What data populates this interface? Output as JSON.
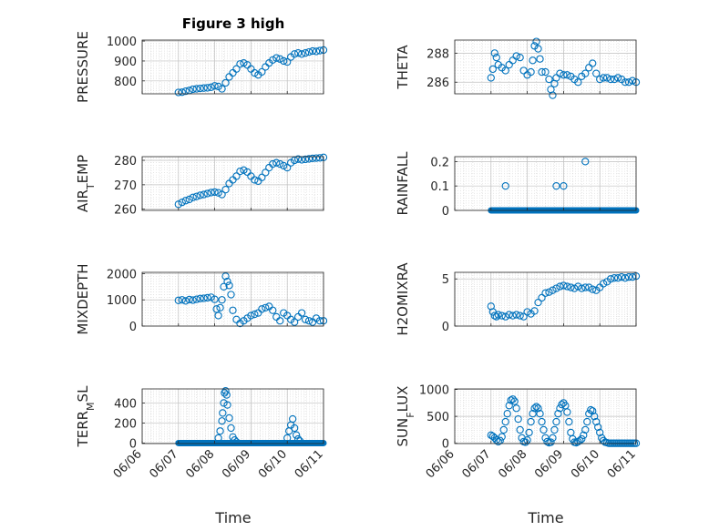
{
  "figure": {
    "title": "Figure 3 high"
  },
  "colors": {
    "marker": "#0072BD",
    "axis": "#262626",
    "grid": "#d6d6d6"
  },
  "chart_data": [
    {
      "type": "scatter",
      "ylabel": "PRESSURE",
      "ylim": [
        735,
        1005
      ],
      "yticks": [
        800,
        900,
        1000
      ],
      "x": [
        7.0,
        7.1,
        7.2,
        7.3,
        7.4,
        7.5,
        7.6,
        7.7,
        7.8,
        7.9,
        8.0,
        8.1,
        8.2,
        8.3,
        8.4,
        8.5,
        8.6,
        8.7,
        8.8,
        8.9,
        9.0,
        9.1,
        9.2,
        9.3,
        9.4,
        9.5,
        9.6,
        9.7,
        9.8,
        9.9,
        10.0,
        10.1,
        10.2,
        10.3,
        10.4,
        10.5,
        10.6,
        10.7,
        10.8,
        10.9,
        11.0
      ],
      "y": [
        742,
        743,
        748,
        752,
        758,
        760,
        762,
        764,
        765,
        768,
        775,
        772,
        760,
        790,
        820,
        840,
        860,
        885,
        890,
        880,
        860,
        840,
        830,
        845,
        870,
        890,
        905,
        915,
        910,
        900,
        895,
        920,
        935,
        940,
        935,
        940,
        945,
        950,
        948,
        952,
        955
      ]
    },
    {
      "type": "scatter",
      "ylabel": "THETA",
      "ylim": [
        285.2,
        288.9
      ],
      "yticks": [
        286,
        288
      ],
      "x": [
        7.0,
        7.05,
        7.1,
        7.15,
        7.2,
        7.3,
        7.4,
        7.5,
        7.6,
        7.7,
        7.8,
        7.9,
        8.0,
        8.1,
        8.15,
        8.2,
        8.25,
        8.3,
        8.35,
        8.4,
        8.5,
        8.6,
        8.65,
        8.7,
        8.75,
        8.8,
        8.9,
        9.0,
        9.1,
        9.2,
        9.3,
        9.4,
        9.5,
        9.6,
        9.7,
        9.8,
        9.9,
        10.0,
        10.1,
        10.2,
        10.3,
        10.4,
        10.5,
        10.6,
        10.7,
        10.8,
        10.9,
        11.0
      ],
      "y": [
        286.3,
        286.9,
        288.0,
        287.7,
        287.2,
        287.0,
        286.8,
        287.2,
        287.5,
        287.8,
        287.7,
        286.8,
        286.5,
        286.7,
        287.5,
        288.5,
        288.8,
        288.3,
        287.6,
        286.7,
        286.7,
        286.2,
        285.5,
        285.1,
        285.9,
        286.3,
        286.6,
        286.5,
        286.5,
        286.4,
        286.2,
        286.0,
        286.4,
        286.6,
        287.0,
        287.3,
        286.6,
        286.2,
        286.3,
        286.3,
        286.2,
        286.2,
        286.3,
        286.2,
        286.0,
        286.0,
        286.1,
        286.0
      ]
    },
    {
      "type": "scatter",
      "ylabel": "AIR_TEMP",
      "ylim": [
        259.5,
        281.5
      ],
      "yticks": [
        260,
        270,
        280
      ],
      "x": [
        7.0,
        7.1,
        7.2,
        7.3,
        7.4,
        7.5,
        7.6,
        7.7,
        7.8,
        7.9,
        8.0,
        8.1,
        8.2,
        8.3,
        8.4,
        8.5,
        8.6,
        8.7,
        8.8,
        8.9,
        9.0,
        9.1,
        9.2,
        9.3,
        9.4,
        9.5,
        9.6,
        9.7,
        9.8,
        9.9,
        10.0,
        10.1,
        10.2,
        10.3,
        10.4,
        10.5,
        10.6,
        10.7,
        10.8,
        10.9,
        11.0
      ],
      "y": [
        262.0,
        262.8,
        263.5,
        264.0,
        264.8,
        265.2,
        265.7,
        266.0,
        266.4,
        266.8,
        267.0,
        266.7,
        266.0,
        268.0,
        270.5,
        272.0,
        273.5,
        275.5,
        276.0,
        275.2,
        273.5,
        272.0,
        271.5,
        273.0,
        275.0,
        277.0,
        278.5,
        279.0,
        278.5,
        277.8,
        277.0,
        279.0,
        280.0,
        280.5,
        280.2,
        280.4,
        280.6,
        280.8,
        280.9,
        281.0,
        281.2
      ]
    },
    {
      "type": "scatter",
      "ylabel": "RAINFALL",
      "ylim": [
        0,
        0.22
      ],
      "yticks": [
        0,
        0.1,
        0.2
      ],
      "x": [
        7.4,
        8.8,
        9.0,
        9.6
      ],
      "y": [
        0.1,
        0.1,
        0.1,
        0.2
      ],
      "baseline": {
        "y": 0,
        "from": 7.0,
        "to": 11.0
      }
    },
    {
      "type": "scatter",
      "ylabel": "MIXDEPTH",
      "ylim": [
        0,
        2050
      ],
      "yticks": [
        0,
        1000,
        2000
      ],
      "x": [
        7.0,
        7.1,
        7.2,
        7.3,
        7.4,
        7.5,
        7.6,
        7.7,
        7.8,
        7.9,
        8.0,
        8.05,
        8.1,
        8.15,
        8.2,
        8.25,
        8.3,
        8.35,
        8.4,
        8.45,
        8.5,
        8.6,
        8.7,
        8.8,
        8.9,
        9.0,
        9.1,
        9.2,
        9.3,
        9.4,
        9.5,
        9.6,
        9.7,
        9.8,
        9.9,
        10.0,
        10.1,
        10.2,
        10.3,
        10.4,
        10.5,
        10.6,
        10.7,
        10.8,
        10.9,
        11.0
      ],
      "y": [
        980,
        1000,
        960,
        1010,
        990,
        1020,
        1050,
        1060,
        1080,
        1100,
        1020,
        650,
        400,
        700,
        1000,
        1500,
        1900,
        1700,
        1550,
        1200,
        600,
        250,
        100,
        200,
        300,
        400,
        450,
        500,
        650,
        700,
        750,
        600,
        350,
        200,
        500,
        400,
        250,
        150,
        350,
        500,
        250,
        200,
        150,
        300,
        200,
        200
      ]
    },
    {
      "type": "scatter",
      "ylabel": "H2OMIXRA",
      "ylim": [
        0,
        5.7
      ],
      "yticks": [
        0,
        5
      ],
      "x": [
        7.0,
        7.05,
        7.1,
        7.15,
        7.2,
        7.3,
        7.4,
        7.5,
        7.6,
        7.7,
        7.8,
        7.9,
        8.0,
        8.1,
        8.2,
        8.3,
        8.4,
        8.5,
        8.6,
        8.7,
        8.8,
        8.9,
        9.0,
        9.1,
        9.2,
        9.3,
        9.4,
        9.5,
        9.6,
        9.7,
        9.8,
        9.9,
        10.0,
        10.1,
        10.2,
        10.3,
        10.4,
        10.5,
        10.6,
        10.7,
        10.8,
        10.9,
        11.0
      ],
      "y": [
        2.1,
        1.5,
        1.1,
        1.0,
        1.2,
        1.1,
        1.0,
        1.2,
        1.1,
        1.2,
        1.1,
        1.0,
        1.5,
        1.3,
        1.6,
        2.5,
        3.0,
        3.5,
        3.6,
        3.8,
        4.0,
        4.2,
        4.3,
        4.2,
        4.1,
        4.0,
        4.2,
        4.0,
        4.1,
        4.1,
        3.9,
        3.8,
        4.1,
        4.5,
        4.7,
        5.0,
        5.1,
        5.1,
        5.2,
        5.1,
        5.2,
        5.2,
        5.3
      ]
    },
    {
      "type": "scatter",
      "ylabel": "TERR_MSL",
      "ylim": [
        -5,
        540
      ],
      "yticks": [
        0,
        200,
        400
      ],
      "x": [
        8.1,
        8.15,
        8.2,
        8.22,
        8.25,
        8.27,
        8.3,
        8.33,
        8.35,
        8.4,
        8.45,
        8.5,
        8.55,
        8.6,
        10.0,
        10.05,
        10.1,
        10.15,
        10.2,
        10.25,
        10.3,
        10.35
      ],
      "y": [
        50,
        120,
        220,
        300,
        400,
        500,
        520,
        480,
        380,
        250,
        150,
        60,
        30,
        10,
        50,
        120,
        180,
        240,
        150,
        80,
        40,
        20
      ],
      "baseline": {
        "y": 0,
        "from": 7.0,
        "to": 11.0
      }
    },
    {
      "type": "scatter",
      "ylabel": "SUN_FLUX",
      "ylim": [
        -5,
        1010
      ],
      "yticks": [
        0,
        500,
        1000
      ],
      "x": [
        7.0,
        7.05,
        7.1,
        7.15,
        7.2,
        7.25,
        7.3,
        7.35,
        7.4,
        7.45,
        7.5,
        7.55,
        7.6,
        7.65,
        7.7,
        7.75,
        7.8,
        7.85,
        7.9,
        7.95,
        8.0,
        8.05,
        8.1,
        8.15,
        8.2,
        8.25,
        8.3,
        8.35,
        8.4,
        8.45,
        8.5,
        8.55,
        8.6,
        8.65,
        8.7,
        8.75,
        8.8,
        8.85,
        8.9,
        8.95,
        9.0,
        9.05,
        9.1,
        9.15,
        9.2,
        9.25,
        9.3,
        9.35,
        9.4,
        9.45,
        9.5,
        9.55,
        9.6,
        9.65,
        9.7,
        9.75,
        9.8,
        9.85,
        9.9,
        9.95,
        10.0,
        10.05,
        10.1,
        10.15,
        10.2,
        10.25,
        10.3,
        10.35,
        10.4,
        10.45,
        10.5,
        10.55,
        10.6,
        10.65,
        10.7,
        10.75,
        10.8,
        10.85,
        10.9,
        10.95,
        11.0
      ],
      "y": [
        150,
        130,
        100,
        60,
        30,
        50,
        120,
        250,
        400,
        550,
        700,
        800,
        820,
        780,
        650,
        450,
        250,
        100,
        30,
        20,
        60,
        200,
        400,
        550,
        650,
        680,
        650,
        550,
        400,
        250,
        100,
        30,
        10,
        20,
        100,
        250,
        400,
        550,
        650,
        720,
        750,
        700,
        580,
        400,
        200,
        80,
        20,
        10,
        30,
        50,
        80,
        150,
        250,
        400,
        550,
        620,
        600,
        500,
        400,
        300,
        200,
        100,
        50,
        20,
        10,
        0,
        0,
        0,
        0,
        0,
        0,
        0,
        0,
        0,
        0,
        0,
        0,
        0,
        0,
        0,
        0
      ]
    }
  ],
  "axes": {
    "xticks": [
      "06/06",
      "06/07",
      "06/08",
      "06/09",
      "06/10",
      "06/11"
    ],
    "xlabel": "Time"
  }
}
